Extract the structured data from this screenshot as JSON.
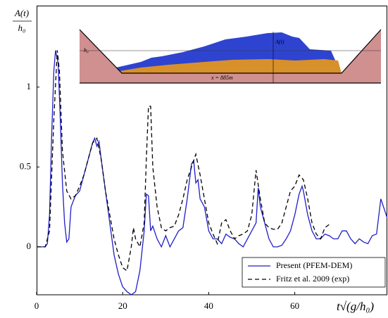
{
  "chart_data": {
    "type": "line",
    "y_label": {
      "numerator": "A(t)",
      "denominator": "h₀"
    },
    "x_label": "t√(g/h₀)",
    "xlim": [
      0,
      81.5
    ],
    "ylim": [
      -0.3,
      1.51
    ],
    "xticks": [
      0,
      20,
      40,
      60
    ],
    "yticks": [
      0,
      0.5,
      1
    ],
    "legend": "lower right",
    "inset_labels": {
      "level": "h₀",
      "height": "A(t)",
      "distance": "x = 885m"
    },
    "series": [
      {
        "name": "Present (PFEM-DEM)",
        "color": "#1f1fc8",
        "linestyle": "solid",
        "x": [
          0,
          2,
          2.5,
          3,
          3.5,
          4,
          4.4,
          5,
          5.5,
          6,
          6.5,
          7,
          7.5,
          8,
          9,
          10,
          11,
          12,
          13,
          13.5,
          14,
          14.5,
          15,
          16,
          17,
          18,
          19,
          20,
          21,
          22,
          23,
          24,
          25,
          25.5,
          26,
          26.5,
          27,
          28,
          29,
          30,
          31,
          32,
          33,
          34,
          35,
          36,
          36.5,
          37,
          37.5,
          38,
          39,
          40,
          41,
          42,
          43,
          44,
          45,
          46,
          47,
          48,
          49,
          50,
          51,
          51.5,
          52,
          53,
          54,
          55,
          56,
          57,
          58,
          59,
          60,
          61,
          61.7,
          62,
          63,
          64,
          65,
          66,
          67,
          68,
          69,
          70,
          71,
          72,
          73,
          74,
          75,
          76,
          77,
          78,
          79,
          80,
          81,
          81.5
        ],
        "values": [
          0,
          0,
          0.02,
          0.2,
          0.7,
          1.1,
          1.23,
          1.15,
          0.8,
          0.4,
          0.15,
          0.03,
          0.05,
          0.25,
          0.32,
          0.35,
          0.45,
          0.55,
          0.65,
          0.68,
          0.63,
          0.66,
          0.55,
          0.35,
          0.15,
          -0.05,
          -0.17,
          -0.25,
          -0.28,
          -0.3,
          -0.28,
          -0.15,
          0.1,
          0.33,
          0.32,
          0.1,
          0.13,
          0.05,
          0,
          0.07,
          0,
          0.05,
          0.1,
          0.12,
          0.3,
          0.52,
          0.54,
          0.4,
          0.42,
          0.3,
          0.25,
          0.1,
          0.05,
          0.05,
          0.02,
          0.08,
          0.06,
          0.05,
          0.02,
          0,
          0.05,
          0.1,
          0.15,
          0.37,
          0.25,
          0.15,
          0.05,
          0,
          0,
          0.01,
          0.05,
          0.1,
          0.2,
          0.33,
          0.38,
          0.35,
          0.2,
          0.1,
          0.05,
          0.05,
          0.08,
          0.07,
          0.05,
          0.05,
          0.1,
          0.1,
          0.05,
          0.02,
          0.05,
          0.03,
          0.02,
          0.07,
          0.08,
          0.3,
          0.22,
          0.18
        ]
      },
      {
        "name": "Fritz et al. 2009 (exp)",
        "color": "#000000",
        "linestyle": "dashed",
        "x": [
          0,
          2,
          3,
          4,
          4.8,
          5.3,
          6,
          7,
          8,
          9,
          10,
          11,
          12,
          13,
          14,
          15,
          16,
          17,
          18,
          19,
          20,
          21,
          22,
          22.5,
          23,
          24,
          25,
          25.5,
          26,
          26.5,
          27,
          28,
          29,
          30,
          31,
          32,
          33,
          34,
          35,
          36,
          37,
          38,
          39,
          40,
          41,
          42,
          43,
          44,
          45,
          46,
          47,
          48,
          49,
          50,
          51,
          52,
          53,
          54,
          55,
          56,
          57,
          58,
          59,
          60,
          61,
          62,
          63,
          64,
          65,
          66,
          67,
          68
        ],
        "values": [
          0,
          0,
          0.1,
          0.8,
          1.23,
          1.1,
          0.6,
          0.35,
          0.3,
          0.32,
          0.38,
          0.45,
          0.55,
          0.65,
          0.68,
          0.55,
          0.35,
          0.2,
          0.05,
          -0.05,
          -0.13,
          -0.15,
          0,
          0.12,
          0.05,
          0,
          0.15,
          0.55,
          0.88,
          0.88,
          0.5,
          0.25,
          0.12,
          0.1,
          0.12,
          0.13,
          0.2,
          0.3,
          0.42,
          0.5,
          0.58,
          0.45,
          0.3,
          0.15,
          0.08,
          0.02,
          0.15,
          0.17,
          0.1,
          0.05,
          0.07,
          0.08,
          0.1,
          0.2,
          0.48,
          0.3,
          0.15,
          0.12,
          0.11,
          0.11,
          0.15,
          0.25,
          0.35,
          0.38,
          0.45,
          0.42,
          0.3,
          0.15,
          0.08,
          0.05,
          0.12,
          0.14
        ]
      }
    ]
  }
}
